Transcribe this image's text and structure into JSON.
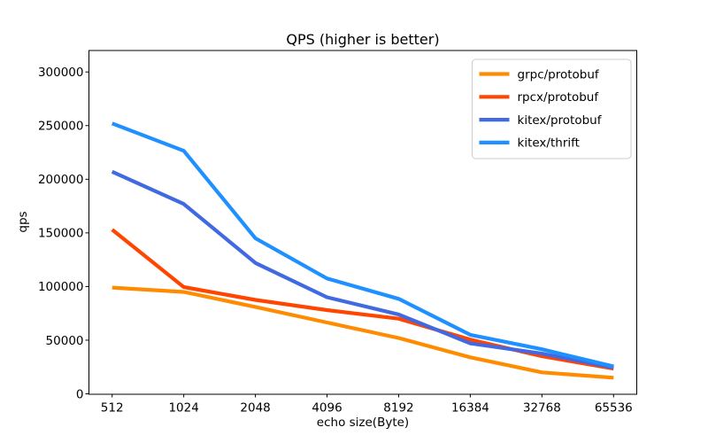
{
  "chart_data": {
    "type": "line",
    "title": "QPS (higher is better)",
    "xlabel": "echo size(Byte)",
    "ylabel": "qps",
    "categories": [
      "512",
      "1024",
      "2048",
      "4096",
      "8192",
      "16384",
      "32768",
      "65536"
    ],
    "series": [
      {
        "name": "grpc/protobuf",
        "color": "#ff8c00",
        "values": [
          99000,
          95000,
          81000,
          66500,
          52000,
          34000,
          20000,
          15000
        ]
      },
      {
        "name": "rpcx/protobuf",
        "color": "#ff4500",
        "values": [
          153000,
          99500,
          87500,
          78000,
          70000,
          50500,
          35000,
          23500
        ]
      },
      {
        "name": "kitex/protobuf",
        "color": "#4169e1",
        "values": [
          207000,
          177000,
          122000,
          90000,
          74000,
          47000,
          37500,
          24500
        ]
      },
      {
        "name": "kitex/thrift",
        "color": "#1e90ff",
        "values": [
          252000,
          226500,
          145000,
          107500,
          88500,
          55000,
          41500,
          25500
        ]
      }
    ],
    "yticks": [
      0,
      50000,
      100000,
      150000,
      200000,
      250000,
      300000
    ],
    "ytick_labels": [
      "0",
      "50000",
      "100000",
      "150000",
      "200000",
      "250000",
      "300000"
    ],
    "ylim": [
      0,
      320000
    ],
    "grid": false,
    "legend_position": "upper right",
    "frame_color": "#000000",
    "legend_border_color": "#cccccc",
    "background_color": "#ffffff"
  }
}
